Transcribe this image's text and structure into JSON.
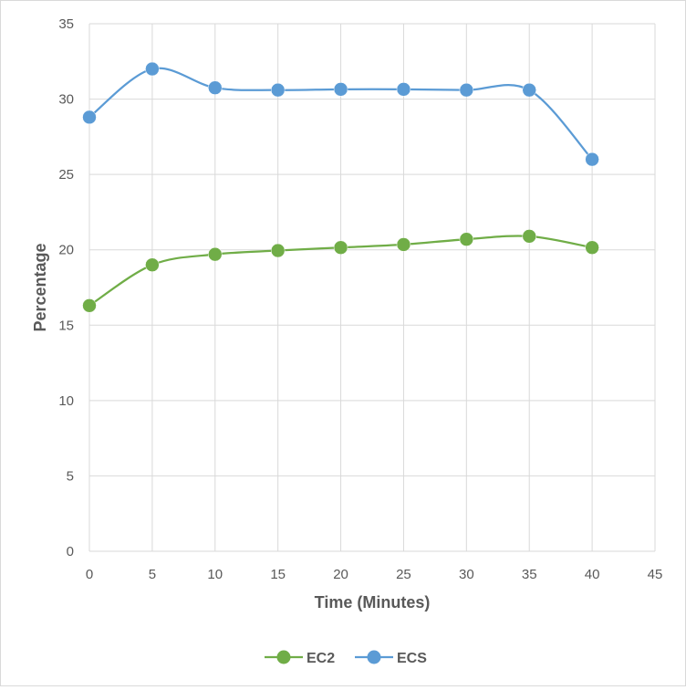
{
  "chart_data": {
    "type": "line",
    "smooth": true,
    "x": [
      0,
      5,
      10,
      15,
      20,
      25,
      30,
      35,
      40
    ],
    "series": [
      {
        "name": "EC2",
        "color": "#70ad47",
        "values": [
          16.3,
          19.0,
          19.7,
          19.95,
          20.15,
          20.35,
          20.7,
          20.9,
          20.15
        ]
      },
      {
        "name": "ECS",
        "color": "#5b9bd5",
        "values": [
          28.8,
          32.0,
          30.75,
          30.6,
          30.65,
          30.65,
          30.6,
          30.6,
          26.0
        ]
      }
    ],
    "xlabel": "Time (Minutes)",
    "ylabel": "Percentage",
    "xlim": [
      0,
      45
    ],
    "ylim": [
      0,
      35
    ],
    "xticks": [
      0,
      5,
      10,
      15,
      20,
      25,
      30,
      35,
      40,
      45
    ],
    "yticks": [
      0,
      5,
      10,
      15,
      20,
      25,
      30,
      35
    ],
    "grid": true,
    "legend_position": "bottom"
  }
}
